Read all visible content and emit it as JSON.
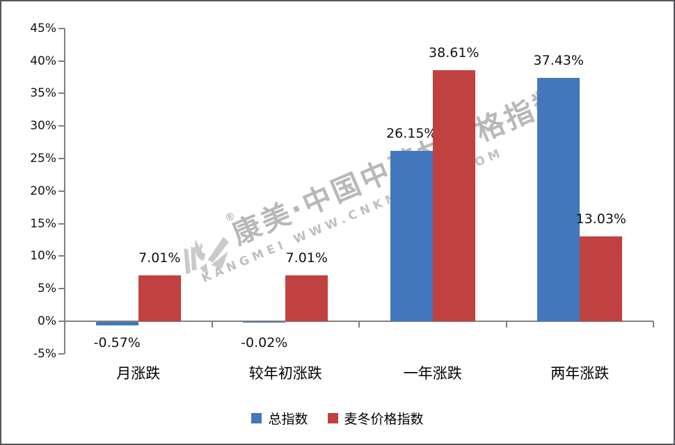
{
  "chart_data": {
    "type": "bar",
    "categories": [
      "月涨跌",
      "较年初涨跌",
      "一年涨跌",
      "两年涨跌"
    ],
    "series": [
      {
        "name": "总指数",
        "color": "#4277BD",
        "values": [
          -0.57,
          -0.02,
          26.15,
          37.43
        ],
        "labels": [
          "-0.57%",
          "-0.02%",
          "26.15%",
          "37.43%"
        ]
      },
      {
        "name": "麦冬价格指数",
        "color": "#C0413F",
        "values": [
          7.01,
          7.01,
          38.61,
          13.03
        ],
        "labels": [
          "7.01%",
          "7.01%",
          "38.61%",
          "13.03%"
        ]
      }
    ],
    "ylim": [
      -5,
      45
    ],
    "ytick_step": 5,
    "ytick_labels": [
      "-5%",
      "0%",
      "5%",
      "10%",
      "15%",
      "20%",
      "25%",
      "30%",
      "35%",
      "40%",
      "45%"
    ],
    "grid": false,
    "legend_position": "bottom",
    "axis_color": "#808080"
  },
  "watermark": {
    "registered_mark": "®",
    "line1": "康美·中国中药材价格指数",
    "line2": "KANGMEI WWW.CNKMPRICE.COM",
    "color": "#8d8d8d"
  }
}
